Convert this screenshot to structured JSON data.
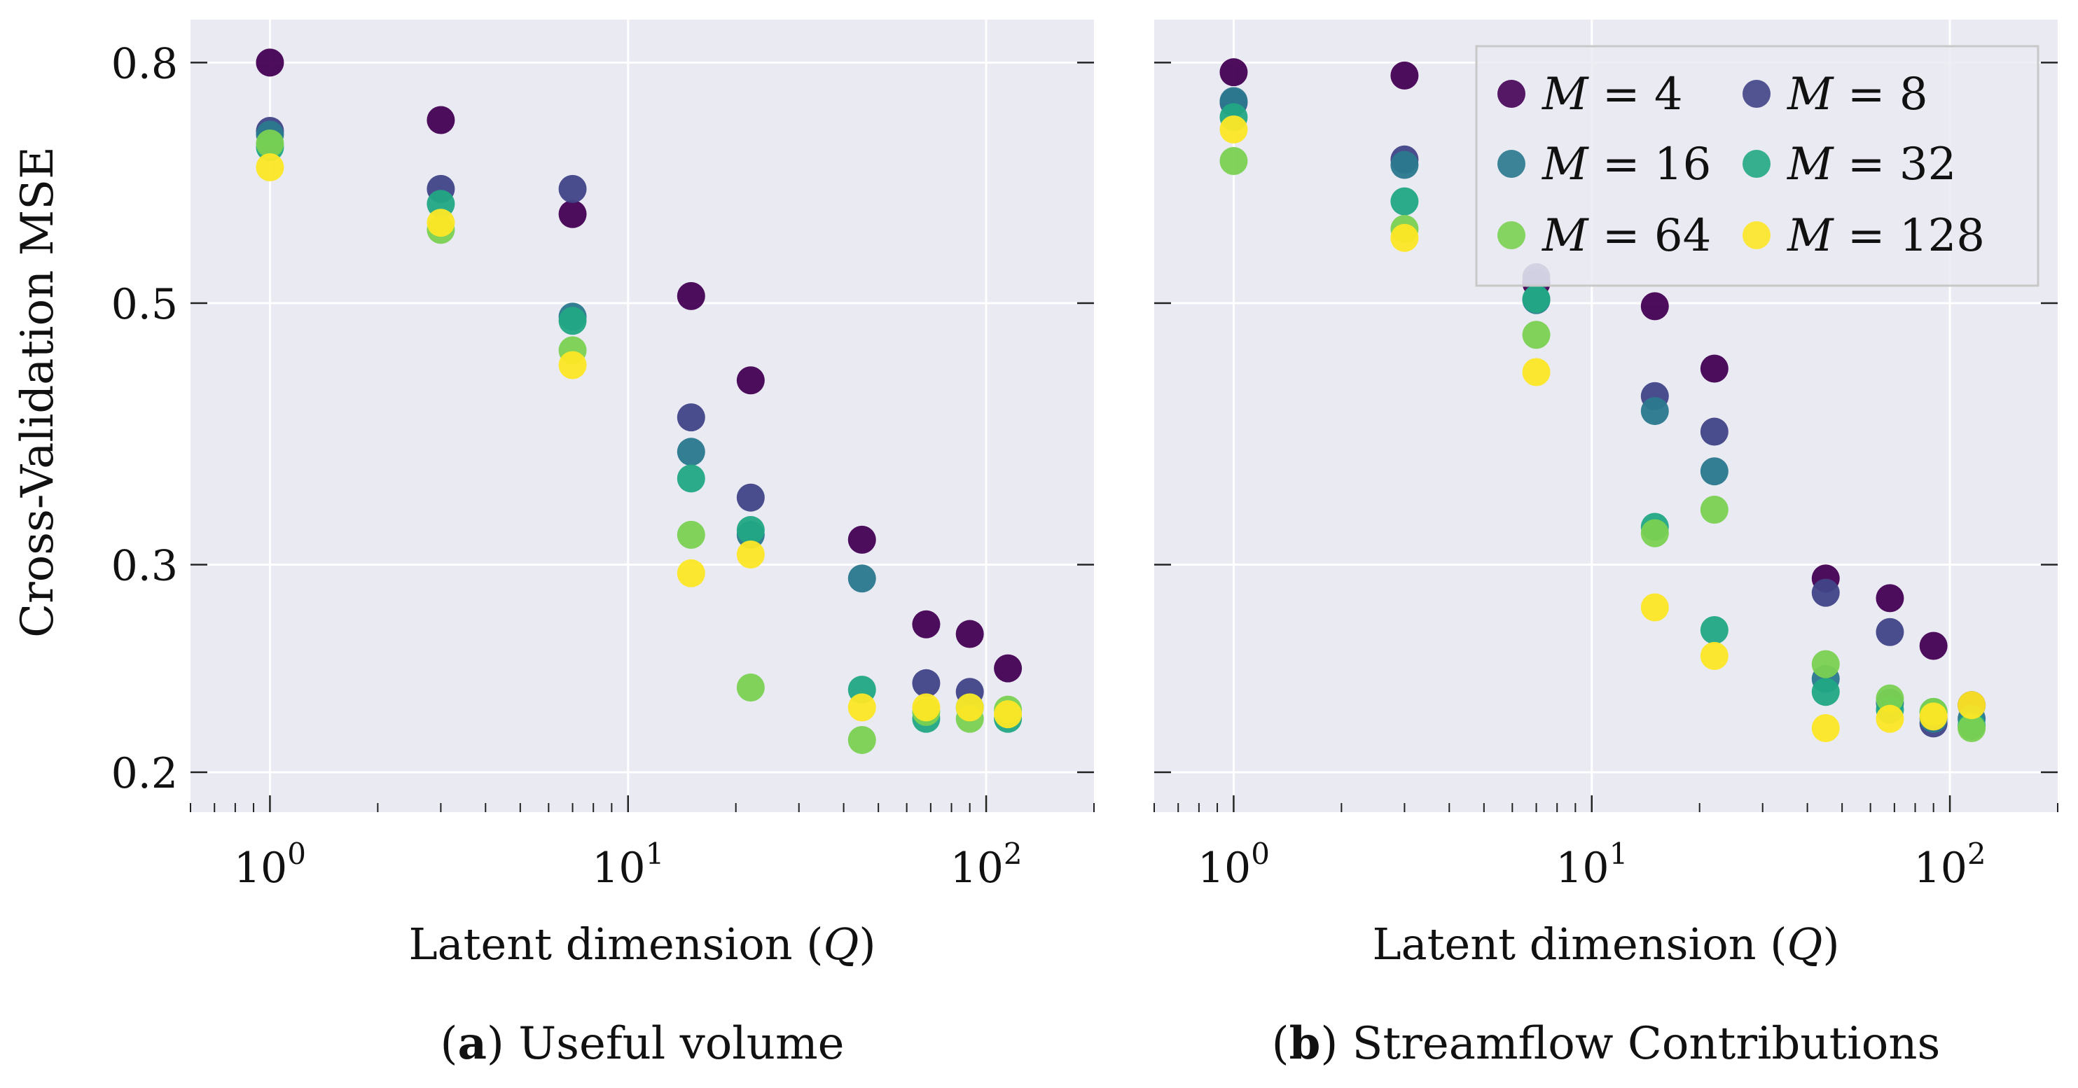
{
  "figure": {
    "y_axis_title": "Cross-Validation MSE",
    "legend": [
      {
        "label": "M = 4",
        "color": "#440154"
      },
      {
        "label": "M = 8",
        "color": "#414487"
      },
      {
        "label": "M = 16",
        "color": "#2a788e"
      },
      {
        "label": "M = 32",
        "color": "#22a884"
      },
      {
        "label": "M = 64",
        "color": "#7ad151"
      },
      {
        "label": "M = 128",
        "color": "#fde725"
      }
    ]
  },
  "chart_data": [
    {
      "type": "scatter",
      "caption_tag": "(a)",
      "caption_text": "Useful volume",
      "xlabel": "Latent dimension (Q)",
      "ylabel": "Cross-Validation MSE",
      "xscale": "log",
      "yscale": "log",
      "xlim": [
        0.6,
        200
      ],
      "ylim": [
        0.185,
        0.87
      ],
      "xticks": [
        {
          "value": 1,
          "label": "10^0"
        },
        {
          "value": 10,
          "label": "10^1"
        },
        {
          "value": 100,
          "label": "10^2"
        }
      ],
      "yticks": [
        {
          "value": 0.2,
          "label": "0.2"
        },
        {
          "value": 0.3,
          "label": "0.3"
        },
        {
          "value": 0.5,
          "label": "0.5"
        },
        {
          "value": 0.8,
          "label": "0.8"
        }
      ],
      "x": [
        1,
        3,
        7,
        15,
        22,
        45,
        68,
        90,
        115
      ],
      "series": [
        {
          "name": "M = 4",
          "color": "#440154",
          "values": [
            0.8,
            0.715,
            0.595,
            0.507,
            0.43,
            0.315,
            0.267,
            0.262,
            0.245
          ]
        },
        {
          "name": "M = 8",
          "color": "#414487",
          "values": [
            0.7,
            0.625,
            0.625,
            0.4,
            0.342,
            null,
            0.238,
            0.234,
            null
          ]
        },
        {
          "name": "M = 16",
          "color": "#2a788e",
          "values": [
            0.695,
            null,
            0.487,
            0.374,
            0.318,
            0.292,
            null,
            null,
            null
          ]
        },
        {
          "name": "M = 32",
          "color": "#22a884",
          "values": [
            0.678,
            0.607,
            0.483,
            0.355,
            0.321,
            0.235,
            0.222,
            0.227,
            0.222
          ]
        },
        {
          "name": "M = 64",
          "color": "#7ad151",
          "values": [
            0.683,
            0.577,
            0.456,
            0.318,
            0.236,
            0.213,
            0.225,
            0.222,
            0.226
          ]
        },
        {
          "name": "M = 128",
          "color": "#fde725",
          "values": [
            0.652,
            0.585,
            0.443,
            0.295,
            0.306,
            0.227,
            0.227,
            0.227,
            0.224
          ]
        }
      ]
    },
    {
      "type": "scatter",
      "caption_tag": "(b)",
      "caption_text": "Streamflow Contributions",
      "xlabel": "Latent dimension (Q)",
      "ylabel": "",
      "xscale": "log",
      "yscale": "log",
      "xlim": [
        0.6,
        200
      ],
      "ylim": [
        0.185,
        0.87
      ],
      "xticks": [
        {
          "value": 1,
          "label": "10^0"
        },
        {
          "value": 10,
          "label": "10^1"
        },
        {
          "value": 100,
          "label": "10^2"
        }
      ],
      "yticks": [
        {
          "value": 0.2,
          "label": ""
        },
        {
          "value": 0.3,
          "label": ""
        },
        {
          "value": 0.5,
          "label": ""
        },
        {
          "value": 0.8,
          "label": ""
        }
      ],
      "x": [
        1,
        3,
        7,
        15,
        22,
        45,
        68,
        90,
        115
      ],
      "series": [
        {
          "name": "M = 4",
          "color": "#440154",
          "values": [
            0.785,
            0.78,
            0.52,
            0.497,
            0.44,
            0.292,
            0.281,
            0.256,
            0.228
          ]
        },
        {
          "name": "M = 8",
          "color": "#414487",
          "values": [
            0.74,
            0.662,
            0.526,
            0.417,
            0.389,
            0.284,
            0.263,
            0.22,
            null
          ]
        },
        {
          "name": "M = 16",
          "color": "#2a788e",
          "values": [
            0.742,
            0.655,
            0.503,
            0.405,
            0.36,
            0.24,
            0.229,
            0.222,
            0.222
          ]
        },
        {
          "name": "M = 32",
          "color": "#22a884",
          "values": [
            0.719,
            0.61,
            0.504,
            0.323,
            0.264,
            0.234,
            0.226,
            0.225,
            0.219
          ]
        },
        {
          "name": "M = 64",
          "color": "#7ad151",
          "values": [
            0.66,
            0.578,
            0.47,
            0.319,
            0.334,
            0.247,
            0.231,
            0.225,
            0.218
          ]
        },
        {
          "name": "M = 128",
          "color": "#fde725",
          "values": [
            0.702,
            0.568,
            0.437,
            0.276,
            0.251,
            0.218,
            0.222,
            0.223,
            0.228
          ]
        }
      ]
    }
  ]
}
